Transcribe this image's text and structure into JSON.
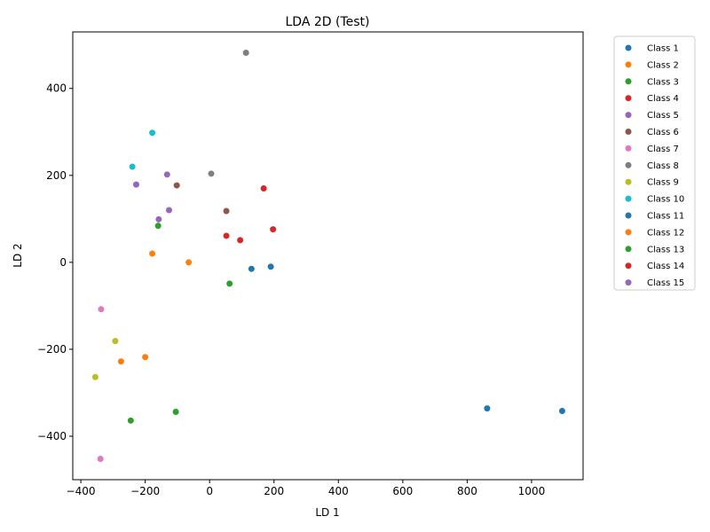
{
  "chart_data": {
    "type": "scatter",
    "title": "LDA 2D (Test)",
    "xlabel": "LD 1",
    "ylabel": "LD 2",
    "xlim": [
      -425,
      1160
    ],
    "ylim": [
      -500,
      530
    ],
    "xticks": [
      -400,
      -200,
      0,
      200,
      400,
      600,
      800,
      1000
    ],
    "yticks": [
      -400,
      -200,
      0,
      200,
      400
    ],
    "grid": false,
    "legend_position": "outside-right",
    "series": [
      {
        "name": "Class 1",
        "color": "#1f77b4",
        "points": [
          [
            130,
            -15
          ],
          [
            190,
            -10
          ]
        ]
      },
      {
        "name": "Class 2",
        "color": "#ff7f0e",
        "points": [
          [
            -178,
            20
          ],
          [
            -65,
            0
          ]
        ]
      },
      {
        "name": "Class 3",
        "color": "#2ca02c",
        "points": [
          [
            -160,
            84
          ],
          [
            62,
            -49
          ]
        ]
      },
      {
        "name": "Class 4",
        "color": "#d62728",
        "points": [
          [
            168,
            170
          ],
          [
            197,
            76
          ],
          [
            52,
            61
          ],
          [
            95,
            51
          ]
        ]
      },
      {
        "name": "Class 5",
        "color": "#9467bd",
        "points": [
          [
            -228,
            179
          ],
          [
            -132,
            202
          ],
          [
            -126,
            120
          ],
          [
            -158,
            99
          ]
        ]
      },
      {
        "name": "Class 6",
        "color": "#8c564b",
        "points": [
          [
            -102,
            177
          ],
          [
            52,
            118
          ]
        ]
      },
      {
        "name": "Class 7",
        "color": "#e377c2",
        "points": [
          [
            -337,
            -108
          ],
          [
            -339,
            -452
          ]
        ]
      },
      {
        "name": "Class 8",
        "color": "#7f7f7f",
        "points": [
          [
            113,
            482
          ],
          [
            5,
            204
          ]
        ]
      },
      {
        "name": "Class 9",
        "color": "#bcbd22",
        "points": [
          [
            -293,
            -181
          ],
          [
            -355,
            -264
          ]
        ]
      },
      {
        "name": "Class 10",
        "color": "#17becf",
        "points": [
          [
            -178,
            298
          ],
          [
            -240,
            220
          ]
        ]
      },
      {
        "name": "Class 11",
        "color": "#1f77b4",
        "points": [
          [
            862,
            -336
          ],
          [
            1095,
            -342
          ]
        ]
      },
      {
        "name": "Class 12",
        "color": "#ff7f0e",
        "points": [
          [
            -200,
            -218
          ],
          [
            -275,
            -228
          ]
        ]
      },
      {
        "name": "Class 13",
        "color": "#2ca02c",
        "points": [
          [
            -105,
            -344
          ],
          [
            -245,
            -364
          ]
        ]
      },
      {
        "name": "Class 14",
        "color": "#d62728",
        "points": []
      },
      {
        "name": "Class 15",
        "color": "#9467bd",
        "points": []
      }
    ]
  }
}
